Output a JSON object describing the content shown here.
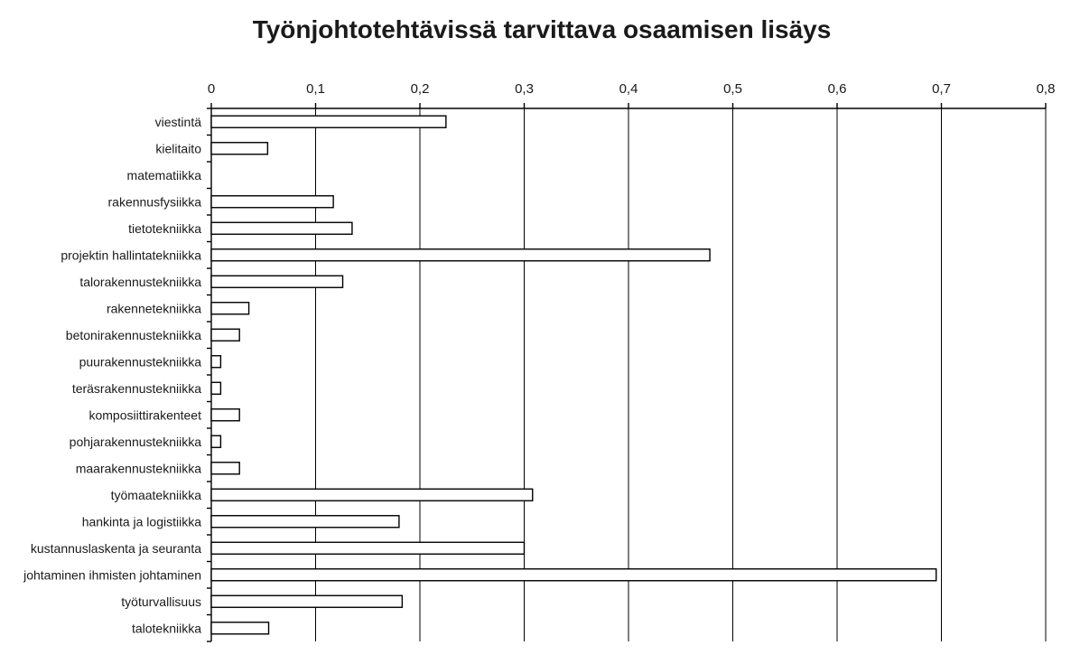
{
  "chart_data": {
    "type": "bar",
    "orientation": "horizontal",
    "title": "Työnjohtotehtävissä tarvittava osaamisen lisäys",
    "xlabel": "",
    "ylabel": "",
    "xlim": [
      0,
      0.8
    ],
    "x_ticks": [
      "0",
      "0,1",
      "0,2",
      "0,3",
      "0,4",
      "0,5",
      "0,6",
      "0,7",
      "0,8"
    ],
    "x_tick_values": [
      0,
      0.1,
      0.2,
      0.3,
      0.4,
      0.5,
      0.6,
      0.7,
      0.8
    ],
    "x_axis_position": "top",
    "grid": true,
    "legend": "none",
    "categories": [
      "viestintä",
      "kielitaito",
      "matematiikka",
      "rakennusfysiikka",
      "tietotekniikka",
      "projektin hallintatekniikka",
      "talorakennustekniikka",
      "rakennetekniikka",
      "betonirakennustekniikka",
      "puurakennustekniikka",
      "teräsrakennustekniikka",
      "komposiittirakenteet",
      "pohjarakennustekniikka",
      "maarakennustekniikka",
      "työmaatekniikka",
      "hankinta ja logistiikka",
      "kustannuslaskenta ja seuranta",
      "johtaminen ihmisten johtaminen",
      "työturvallisuus",
      "talotekniikka"
    ],
    "values": [
      0.225,
      0.054,
      0,
      0.117,
      0.135,
      0.478,
      0.126,
      0.036,
      0.027,
      0.009,
      0.009,
      0.027,
      0.009,
      0.027,
      0.308,
      0.18,
      0.3,
      0.695,
      0.183,
      0.055
    ]
  }
}
